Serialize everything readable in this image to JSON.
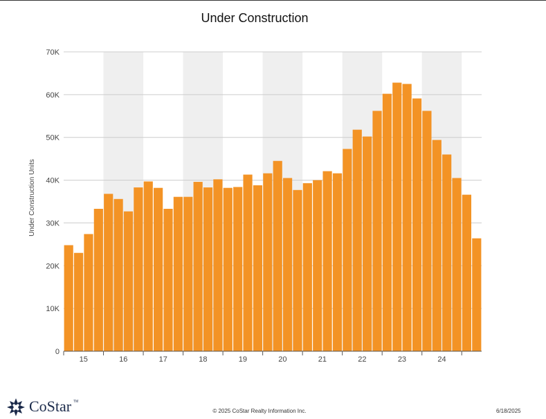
{
  "chart_data": {
    "type": "bar",
    "title": "Under Construction",
    "ylabel": "Under Construction Units",
    "xlabel": "",
    "ylim": [
      0,
      70000
    ],
    "y_ticks": [
      0,
      10000,
      20000,
      30000,
      40000,
      50000,
      60000,
      70000
    ],
    "y_tick_labels": [
      "0",
      "10K",
      "20K",
      "30K",
      "40K",
      "50K",
      "60K",
      "70K"
    ],
    "years": [
      "15",
      "16",
      "17",
      "18",
      "19",
      "20",
      "21",
      "22",
      "23",
      "24"
    ],
    "quarters_per_year": 4,
    "alternate_year_shading": true,
    "grid": true,
    "bar_color": "#f39325",
    "band_color": "#efefef",
    "values": [
      24800,
      23000,
      27400,
      33300,
      36800,
      35600,
      32700,
      38300,
      39700,
      38200,
      33300,
      36100,
      36100,
      39600,
      38300,
      40200,
      38200,
      38400,
      41300,
      38800,
      41600,
      44500,
      40500,
      37700,
      39300,
      40000,
      42100,
      41600,
      47300,
      51800,
      50200,
      56200,
      60200,
      62800,
      62500,
      59100,
      56200,
      49400,
      46000,
      40500,
      36600,
      26400
    ]
  },
  "footer": {
    "logo_text": "CoStar",
    "logo_tm": "TM",
    "copyright": "© 2025 CoStar Realty Information Inc.",
    "date": "6/18/2025"
  }
}
